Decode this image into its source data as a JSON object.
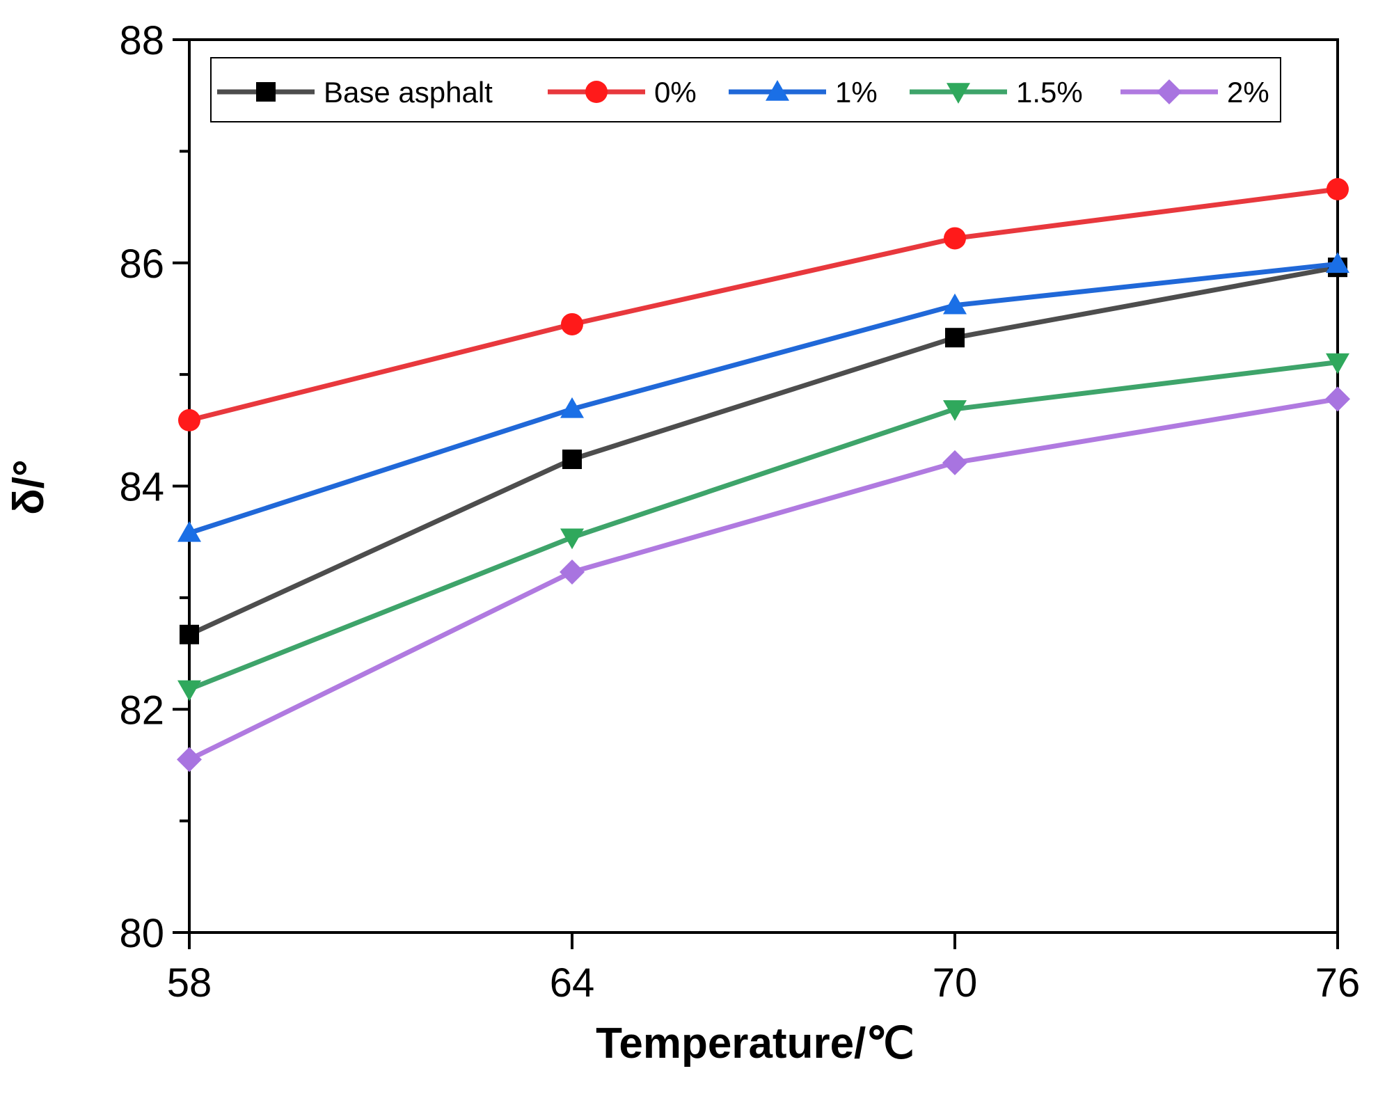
{
  "chart_data": {
    "type": "line",
    "title": "",
    "xlabel": "Temperature/℃",
    "ylabel": "δ/°",
    "x": [
      58,
      64,
      70,
      76
    ],
    "xticks": [
      "58",
      "64",
      "70",
      "76"
    ],
    "ylim": [
      80,
      88
    ],
    "yticks": [
      "80",
      "82",
      "84",
      "86",
      "88"
    ],
    "legend_position": "top",
    "series": [
      {
        "name": "Base asphalt",
        "marker": "square",
        "color": "#4d4d4d",
        "values": [
          82.67,
          84.24,
          85.33,
          85.96
        ]
      },
      {
        "name": "0%",
        "marker": "circle",
        "color": "#e8383d",
        "values": [
          84.59,
          85.45,
          86.22,
          86.66
        ]
      },
      {
        "name": "1%",
        "marker": "triangle-up",
        "color": "#2068d8",
        "values": [
          83.58,
          84.69,
          85.62,
          85.99
        ]
      },
      {
        "name": "1.5%",
        "marker": "triangle-down",
        "color": "#3ea46a",
        "values": [
          82.18,
          83.54,
          84.69,
          85.11
        ]
      },
      {
        "name": "2%",
        "marker": "diamond",
        "color": "#b07ae0",
        "values": [
          81.55,
          83.23,
          84.21,
          84.78
        ]
      }
    ]
  }
}
